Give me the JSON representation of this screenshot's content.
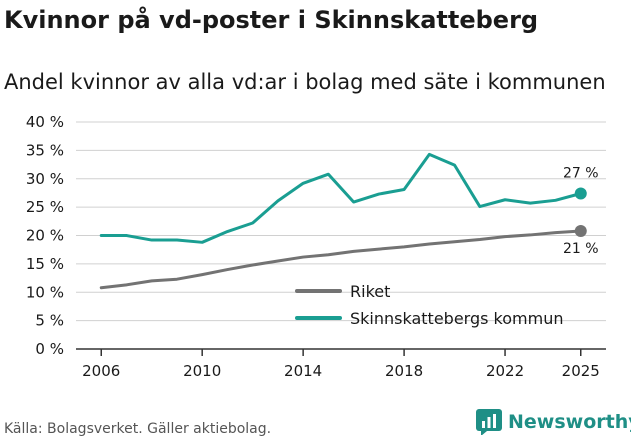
{
  "title": "Kvinnor på vd-poster i Skinnskatteberg",
  "subtitle": "Andel kvinnor av alla vd:ar i bolag med säte i kommunen",
  "source": "Källa: Bolagsverket. Gäller aktiebolag.",
  "brand": "Newsworthy",
  "colors": {
    "riket": "#737373",
    "kommun": "#1a9e92",
    "grid": "#d0d0d0",
    "axis": "#333333"
  },
  "chart_data": {
    "type": "line",
    "title": "Kvinnor på vd-poster i Skinnskatteberg",
    "subtitle": "Andel kvinnor av alla vd:ar i bolag med säte i kommunen",
    "xlabel": "",
    "ylabel": "",
    "xlim": [
      2005,
      2026
    ],
    "ylim": [
      0,
      40
    ],
    "x_ticks": [
      2006,
      2010,
      2014,
      2018,
      2022,
      2025
    ],
    "y_ticks": [
      0,
      5,
      10,
      15,
      20,
      25,
      30,
      35,
      40
    ],
    "y_tick_labels": [
      "0 %",
      "5 %",
      "10 %",
      "15 %",
      "20 %",
      "25 %",
      "30 %",
      "35 %",
      "40 %"
    ],
    "grid": true,
    "legend_position": "bottom-right",
    "x": [
      2006,
      2007,
      2008,
      2009,
      2010,
      2011,
      2012,
      2013,
      2014,
      2015,
      2016,
      2017,
      2018,
      2019,
      2020,
      2021,
      2022,
      2023,
      2024,
      2025
    ],
    "series": [
      {
        "name": "Riket",
        "color": "#737373",
        "values": [
          10.8,
          11.3,
          12.0,
          12.3,
          13.1,
          14.0,
          14.8,
          15.5,
          16.2,
          16.6,
          17.2,
          17.6,
          18.0,
          18.5,
          18.9,
          19.3,
          19.8,
          20.1,
          20.5,
          20.8
        ],
        "end_label": "21 %"
      },
      {
        "name": "Skinnskattebergs kommun",
        "color": "#1a9e92",
        "values": [
          20.0,
          20.0,
          19.2,
          19.2,
          18.8,
          20.7,
          22.2,
          26.1,
          29.2,
          30.8,
          25.9,
          27.3,
          28.1,
          34.3,
          32.4,
          25.1,
          26.3,
          25.7,
          26.2,
          27.4
        ],
        "end_label": "27 %"
      }
    ]
  }
}
